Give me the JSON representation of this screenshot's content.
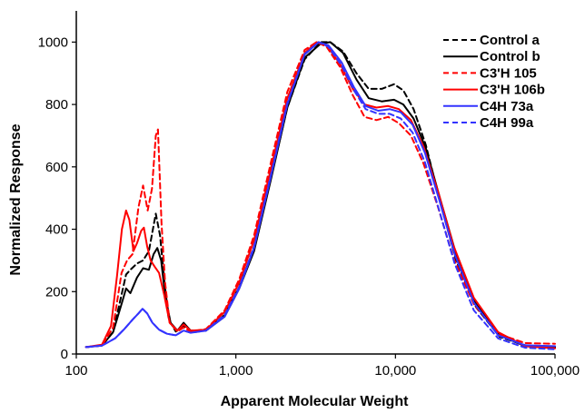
{
  "chart_data": {
    "type": "line",
    "xlabel": "Apparent Molecular Weight",
    "ylabel": "Normalized Response",
    "xscale": "log",
    "xlim": [
      100,
      100000
    ],
    "ylim": [
      0,
      1100
    ],
    "x_ticks": [
      100,
      1000,
      10000,
      100000
    ],
    "x_tick_labels": [
      "100",
      "1,000",
      "10,000",
      "100,000"
    ],
    "y_ticks": [
      0,
      200,
      400,
      600,
      800,
      1000
    ],
    "y_tick_labels": [
      "0",
      "200",
      "400",
      "600",
      "800",
      "1000"
    ],
    "grid": false,
    "legend_position": "top-right",
    "series": [
      {
        "name": "Control a",
        "color": "#000000",
        "dash": "dashed",
        "points": [
          [
            115,
            22
          ],
          [
            145,
            27
          ],
          [
            170,
            70
          ],
          [
            192,
            190
          ],
          [
            205,
            255
          ],
          [
            218,
            270
          ],
          [
            240,
            290
          ],
          [
            262,
            300
          ],
          [
            285,
            330
          ],
          [
            315,
            450
          ],
          [
            335,
            380
          ],
          [
            355,
            240
          ],
          [
            380,
            110
          ],
          [
            420,
            72
          ],
          [
            470,
            90
          ],
          [
            520,
            75
          ],
          [
            650,
            75
          ],
          [
            850,
            125
          ],
          [
            1050,
            215
          ],
          [
            1300,
            340
          ],
          [
            1650,
            560
          ],
          [
            2100,
            790
          ],
          [
            2700,
            945
          ],
          [
            3400,
            1000
          ],
          [
            3900,
            1000
          ],
          [
            4700,
            970
          ],
          [
            5700,
            900
          ],
          [
            6800,
            850
          ],
          [
            8200,
            850
          ],
          [
            9800,
            865
          ],
          [
            11200,
            845
          ],
          [
            13000,
            785
          ],
          [
            15500,
            670
          ],
          [
            19000,
            490
          ],
          [
            24000,
            300
          ],
          [
            32000,
            150
          ],
          [
            45000,
            55
          ],
          [
            65000,
            28
          ],
          [
            100000,
            22
          ]
        ]
      },
      {
        "name": "Control b",
        "color": "#000000",
        "dash": "solid",
        "points": [
          [
            115,
            22
          ],
          [
            145,
            27
          ],
          [
            170,
            70
          ],
          [
            192,
            160
          ],
          [
            205,
            210
          ],
          [
            218,
            195
          ],
          [
            240,
            245
          ],
          [
            262,
            275
          ],
          [
            285,
            270
          ],
          [
            305,
            320
          ],
          [
            322,
            340
          ],
          [
            340,
            300
          ],
          [
            360,
            190
          ],
          [
            390,
            100
          ],
          [
            430,
            75
          ],
          [
            470,
            100
          ],
          [
            520,
            75
          ],
          [
            650,
            75
          ],
          [
            850,
            120
          ],
          [
            1050,
            210
          ],
          [
            1300,
            330
          ],
          [
            1650,
            555
          ],
          [
            2100,
            790
          ],
          [
            2700,
            950
          ],
          [
            3400,
            995
          ],
          [
            3900,
            1000
          ],
          [
            4700,
            965
          ],
          [
            5700,
            880
          ],
          [
            6800,
            820
          ],
          [
            8200,
            810
          ],
          [
            9800,
            815
          ],
          [
            11200,
            800
          ],
          [
            13000,
            755
          ],
          [
            15500,
            660
          ],
          [
            19000,
            500
          ],
          [
            24000,
            320
          ],
          [
            32000,
            160
          ],
          [
            45000,
            60
          ],
          [
            65000,
            25
          ],
          [
            100000,
            20
          ]
        ]
      },
      {
        "name": "C3'H 105",
        "color": "#ff0000",
        "dash": "dashed",
        "points": [
          [
            115,
            22
          ],
          [
            145,
            27
          ],
          [
            170,
            85
          ],
          [
            192,
            260
          ],
          [
            208,
            300
          ],
          [
            225,
            320
          ],
          [
            245,
            470
          ],
          [
            262,
            540
          ],
          [
            280,
            460
          ],
          [
            298,
            530
          ],
          [
            315,
            700
          ],
          [
            325,
            720
          ],
          [
            342,
            420
          ],
          [
            360,
            230
          ],
          [
            385,
            100
          ],
          [
            430,
            72
          ],
          [
            470,
            85
          ],
          [
            520,
            72
          ],
          [
            650,
            80
          ],
          [
            850,
            140
          ],
          [
            1050,
            240
          ],
          [
            1300,
            380
          ],
          [
            1650,
            610
          ],
          [
            2100,
            840
          ],
          [
            2700,
            975
          ],
          [
            3200,
            1000
          ],
          [
            3700,
            985
          ],
          [
            4500,
            920
          ],
          [
            5400,
            830
          ],
          [
            6400,
            760
          ],
          [
            7600,
            750
          ],
          [
            9000,
            760
          ],
          [
            10500,
            740
          ],
          [
            12500,
            700
          ],
          [
            15000,
            610
          ],
          [
            18500,
            470
          ],
          [
            23000,
            310
          ],
          [
            31000,
            160
          ],
          [
            44000,
            65
          ],
          [
            65000,
            35
          ],
          [
            100000,
            33
          ]
        ]
      },
      {
        "name": "C3'H 106b",
        "color": "#ff0000",
        "dash": "solid",
        "points": [
          [
            115,
            22
          ],
          [
            145,
            30
          ],
          [
            165,
            90
          ],
          [
            180,
            250
          ],
          [
            193,
            400
          ],
          [
            205,
            460
          ],
          [
            215,
            430
          ],
          [
            228,
            330
          ],
          [
            240,
            355
          ],
          [
            255,
            395
          ],
          [
            265,
            405
          ],
          [
            278,
            345
          ],
          [
            292,
            300
          ],
          [
            310,
            280
          ],
          [
            330,
            260
          ],
          [
            355,
            190
          ],
          [
            385,
            100
          ],
          [
            430,
            75
          ],
          [
            470,
            95
          ],
          [
            520,
            75
          ],
          [
            650,
            78
          ],
          [
            850,
            135
          ],
          [
            1050,
            230
          ],
          [
            1300,
            365
          ],
          [
            1650,
            590
          ],
          [
            2100,
            820
          ],
          [
            2700,
            965
          ],
          [
            3200,
            1000
          ],
          [
            3700,
            990
          ],
          [
            4500,
            930
          ],
          [
            5400,
            850
          ],
          [
            6400,
            800
          ],
          [
            7600,
            790
          ],
          [
            9000,
            795
          ],
          [
            10500,
            785
          ],
          [
            12500,
            750
          ],
          [
            15000,
            665
          ],
          [
            18500,
            520
          ],
          [
            23000,
            350
          ],
          [
            31000,
            180
          ],
          [
            44000,
            70
          ],
          [
            65000,
            25
          ],
          [
            100000,
            18
          ]
        ]
      },
      {
        "name": "C4H 73a",
        "color": "#3333ff",
        "dash": "solid",
        "points": [
          [
            115,
            22
          ],
          [
            145,
            27
          ],
          [
            175,
            50
          ],
          [
            200,
            80
          ],
          [
            225,
            110
          ],
          [
            245,
            130
          ],
          [
            260,
            145
          ],
          [
            278,
            130
          ],
          [
            300,
            100
          ],
          [
            330,
            78
          ],
          [
            370,
            65
          ],
          [
            420,
            60
          ],
          [
            470,
            75
          ],
          [
            520,
            68
          ],
          [
            650,
            75
          ],
          [
            850,
            120
          ],
          [
            1050,
            210
          ],
          [
            1300,
            340
          ],
          [
            1650,
            565
          ],
          [
            2100,
            800
          ],
          [
            2700,
            960
          ],
          [
            3300,
            1000
          ],
          [
            3800,
            990
          ],
          [
            4600,
            935
          ],
          [
            5500,
            855
          ],
          [
            6500,
            795
          ],
          [
            7800,
            780
          ],
          [
            9200,
            785
          ],
          [
            10800,
            775
          ],
          [
            12800,
            735
          ],
          [
            15300,
            645
          ],
          [
            18800,
            495
          ],
          [
            23500,
            320
          ],
          [
            31000,
            165
          ],
          [
            44000,
            60
          ],
          [
            65000,
            28
          ],
          [
            100000,
            25
          ]
        ]
      },
      {
        "name": "C4H 99a",
        "color": "#3333ff",
        "dash": "dashed",
        "points": [
          [
            115,
            22
          ],
          [
            145,
            27
          ],
          [
            175,
            50
          ],
          [
            200,
            80
          ],
          [
            225,
            110
          ],
          [
            245,
            130
          ],
          [
            260,
            145
          ],
          [
            278,
            130
          ],
          [
            300,
            100
          ],
          [
            330,
            78
          ],
          [
            370,
            65
          ],
          [
            420,
            60
          ],
          [
            470,
            75
          ],
          [
            520,
            68
          ],
          [
            650,
            75
          ],
          [
            850,
            125
          ],
          [
            1050,
            215
          ],
          [
            1300,
            345
          ],
          [
            1650,
            570
          ],
          [
            2100,
            805
          ],
          [
            2700,
            962
          ],
          [
            3300,
            1000
          ],
          [
            3800,
            985
          ],
          [
            4600,
            925
          ],
          [
            5500,
            845
          ],
          [
            6500,
            785
          ],
          [
            7800,
            770
          ],
          [
            9200,
            770
          ],
          [
            10800,
            755
          ],
          [
            12800,
            710
          ],
          [
            15300,
            615
          ],
          [
            18800,
            460
          ],
          [
            23500,
            290
          ],
          [
            31000,
            140
          ],
          [
            44000,
            50
          ],
          [
            65000,
            20
          ],
          [
            100000,
            15
          ]
        ]
      }
    ]
  }
}
